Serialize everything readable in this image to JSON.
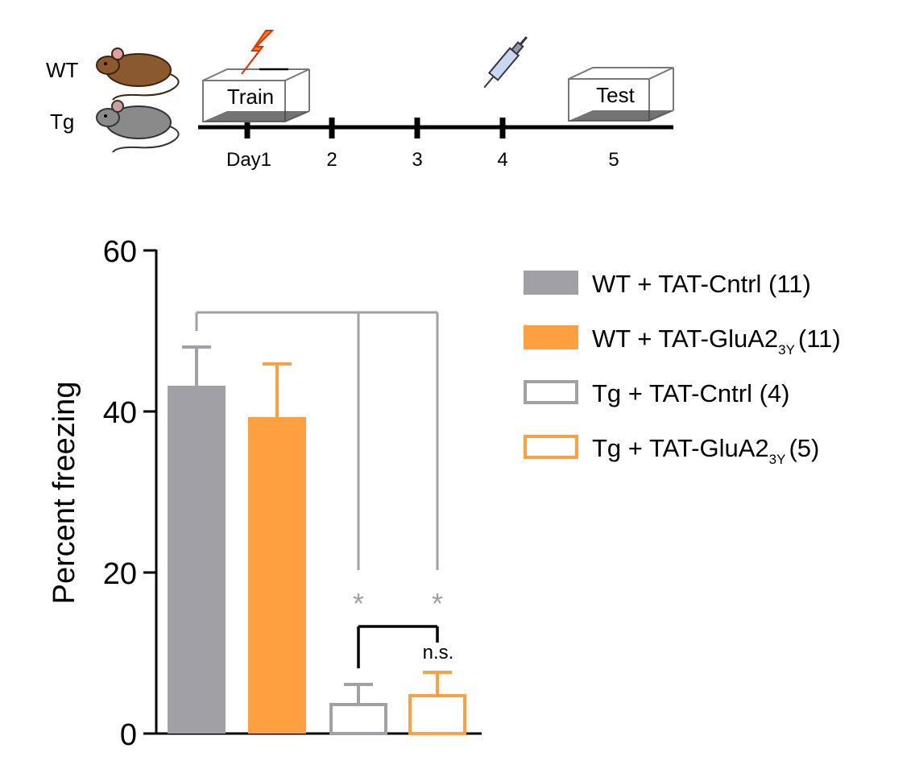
{
  "timeline": {
    "groups": [
      "WT",
      "Tg"
    ],
    "train_label": "Train",
    "test_label": "Test",
    "days": [
      "Day1",
      "2",
      "3",
      "4",
      "5"
    ]
  },
  "colors": {
    "gray": "#a0a0a6",
    "orange": "#ffa040",
    "black": "#000000"
  },
  "chart_data": {
    "type": "bar",
    "ylabel": "Percent freezing",
    "ylim": [
      0,
      60
    ],
    "yticks": [
      "0",
      "20",
      "40",
      "60"
    ],
    "series": [
      {
        "name": "WT + TAT-Cntrl (11)",
        "label_main": "WT + TAT-Cntrl",
        "label_sub": "",
        "label_n": "(11)",
        "mean": 43.2,
        "sem": 4.8,
        "color": "#a0a0a6",
        "filled": true
      },
      {
        "name": "WT + TAT-GluA2 3Y (11)",
        "label_main": "WT + TAT-GluA2",
        "label_sub": "3Y",
        "label_n": "(11)",
        "mean": 39.3,
        "sem": 6.6,
        "color": "#ffa040",
        "filled": true
      },
      {
        "name": "Tg + TAT-Cntrl (4)",
        "label_main": "Tg + TAT-Cntrl",
        "label_sub": "",
        "label_n": "(4)",
        "mean": 3.8,
        "sem": 2.3,
        "color": "#a0a0a6",
        "filled": false
      },
      {
        "name": "Tg + TAT-GluA2 3Y (5)",
        "label_main": "Tg + TAT-GluA2",
        "label_sub": "3Y",
        "label_n": "(5)",
        "mean": 4.9,
        "sem": 2.7,
        "color": "#ffa040",
        "filled": false
      }
    ],
    "annotations": {
      "star": "*",
      "ns": "n.s."
    },
    "legend_position": "right"
  }
}
